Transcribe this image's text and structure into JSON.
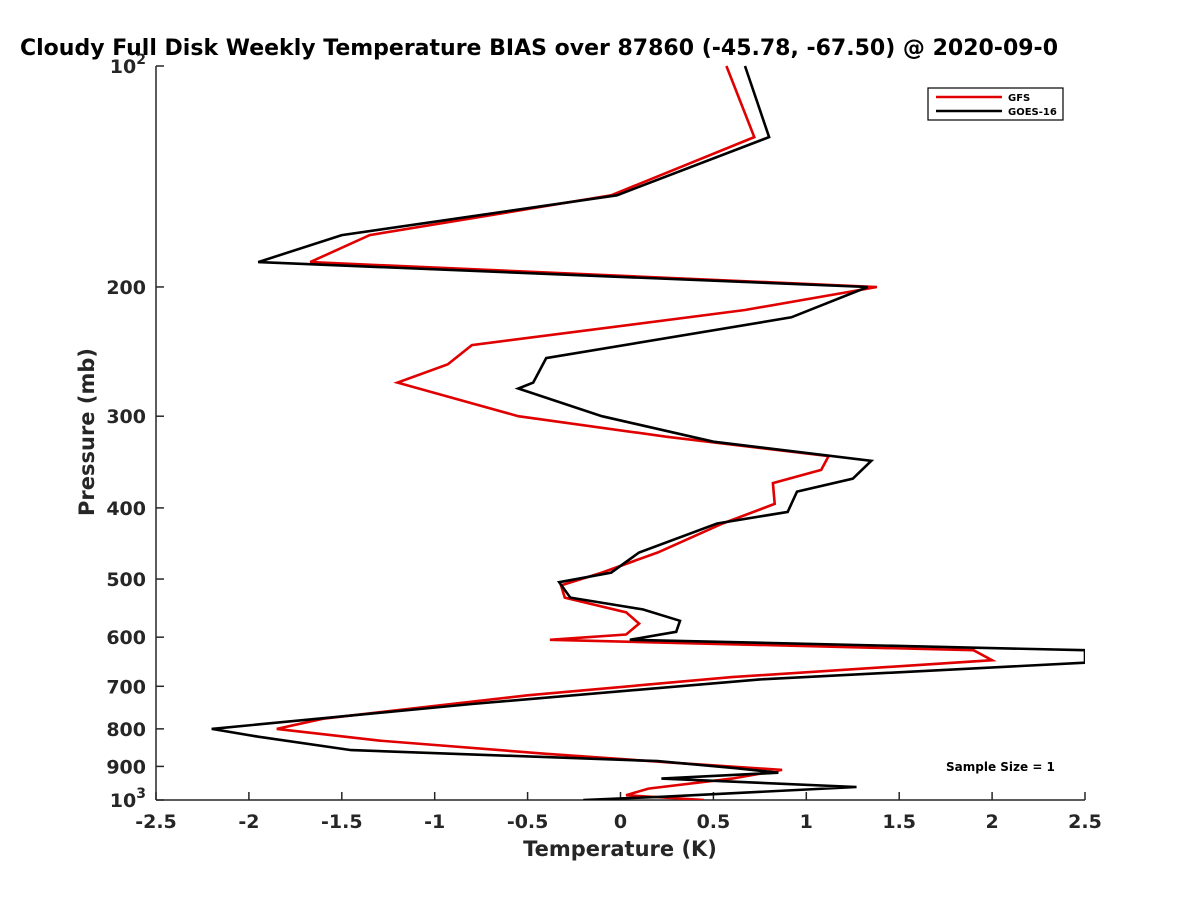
{
  "chart_data": {
    "type": "line",
    "title": "Cloudy Full Disk Weekly Temperature BIAS over 87860 (-45.78, -67.50) @ 2020-09-0",
    "xlabel": "Temperature (K)",
    "ylabel": "Pressure (mb)",
    "xlim": [
      -2.5,
      2.5
    ],
    "ylim": [
      100,
      1000
    ],
    "y_scale": "log",
    "y_reversed": true,
    "grid": false,
    "legend_position": "top-right",
    "x_ticks": [
      "-2.5",
      "-2",
      "-1.5",
      "-1",
      "-0.5",
      "0",
      "0.5",
      "1",
      "1.5",
      "2",
      "2.5"
    ],
    "y_ticks": [
      {
        "value": 100,
        "label": "10",
        "sup": "2"
      },
      {
        "value": 200,
        "label": "200",
        "sup": ""
      },
      {
        "value": 300,
        "label": "300",
        "sup": ""
      },
      {
        "value": 400,
        "label": "400",
        "sup": ""
      },
      {
        "value": 500,
        "label": "500",
        "sup": ""
      },
      {
        "value": 600,
        "label": "600",
        "sup": ""
      },
      {
        "value": 700,
        "label": "700",
        "sup": ""
      },
      {
        "value": 800,
        "label": "800",
        "sup": ""
      },
      {
        "value": 900,
        "label": "900",
        "sup": ""
      },
      {
        "value": 1000,
        "label": "10",
        "sup": "3"
      }
    ],
    "annotation": "Sample Size = 1",
    "series": [
      {
        "name": "GFS",
        "color": "#e00000",
        "points": [
          [
            0.57,
            100
          ],
          [
            0.72,
            125
          ],
          [
            -0.05,
            150
          ],
          [
            -1.35,
            170
          ],
          [
            -1.67,
            185
          ],
          [
            1.38,
            200
          ],
          [
            0.67,
            215
          ],
          [
            -0.8,
            240
          ],
          [
            -0.93,
            255
          ],
          [
            -1.2,
            270
          ],
          [
            -0.55,
            300
          ],
          [
            0.25,
            320
          ],
          [
            1.12,
            340
          ],
          [
            1.08,
            355
          ],
          [
            0.82,
            370
          ],
          [
            0.83,
            395
          ],
          [
            0.55,
            420
          ],
          [
            0.2,
            460
          ],
          [
            -0.1,
            490
          ],
          [
            -0.32,
            510
          ],
          [
            -0.3,
            530
          ],
          [
            0.03,
            555
          ],
          [
            0.1,
            575
          ],
          [
            0.03,
            595
          ],
          [
            -0.38,
            605
          ],
          [
            1.9,
            625
          ],
          [
            2.0,
            645
          ],
          [
            0.6,
            680
          ],
          [
            -0.5,
            720
          ],
          [
            -1.6,
            775
          ],
          [
            -1.85,
            800
          ],
          [
            -1.3,
            830
          ],
          [
            -0.4,
            865
          ],
          [
            0.3,
            890
          ],
          [
            0.87,
            910
          ],
          [
            0.6,
            935
          ],
          [
            0.15,
            965
          ],
          [
            0.03,
            985
          ],
          [
            0.45,
            1000
          ]
        ]
      },
      {
        "name": "GOES-16",
        "color": "#000000",
        "points": [
          [
            0.67,
            100
          ],
          [
            0.8,
            125
          ],
          [
            -0.02,
            150
          ],
          [
            -1.5,
            170
          ],
          [
            -1.95,
            185
          ],
          [
            1.33,
            200
          ],
          [
            0.92,
            220
          ],
          [
            -0.4,
            250
          ],
          [
            -0.47,
            270
          ],
          [
            -0.55,
            275
          ],
          [
            -0.1,
            300
          ],
          [
            0.5,
            325
          ],
          [
            1.35,
            345
          ],
          [
            1.25,
            365
          ],
          [
            0.95,
            380
          ],
          [
            0.9,
            405
          ],
          [
            0.52,
            420
          ],
          [
            0.1,
            460
          ],
          [
            -0.05,
            490
          ],
          [
            -0.33,
            505
          ],
          [
            -0.27,
            530
          ],
          [
            0.12,
            550
          ],
          [
            0.32,
            570
          ],
          [
            0.3,
            590
          ],
          [
            0.05,
            605
          ],
          [
            2.5,
            625
          ],
          [
            2.5,
            650
          ],
          [
            0.75,
            685
          ],
          [
            -0.8,
            740
          ],
          [
            -2.2,
            800
          ],
          [
            -1.95,
            820
          ],
          [
            -1.45,
            855
          ],
          [
            0.2,
            885
          ],
          [
            0.62,
            905
          ],
          [
            0.85,
            918
          ],
          [
            0.22,
            935
          ],
          [
            1.27,
            960
          ],
          [
            0.22,
            990
          ],
          [
            -0.2,
            1000
          ]
        ]
      }
    ]
  }
}
